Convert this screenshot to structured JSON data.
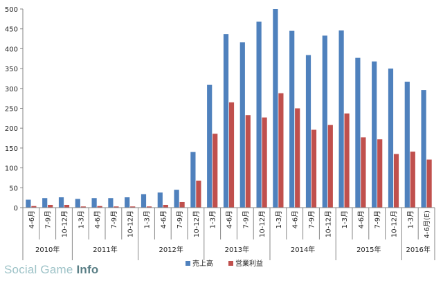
{
  "watermark": {
    "prefix": "Social Game ",
    "suffix": "Info"
  },
  "chart_data": {
    "type": "bar",
    "title": "",
    "xlabel": "",
    "ylabel": "",
    "ylim": [
      0,
      500
    ],
    "yticks": [
      0,
      50,
      100,
      150,
      200,
      250,
      300,
      350,
      400,
      450,
      500
    ],
    "grid": false,
    "legend_position": "bottom",
    "categories": [
      "4-6月",
      "7-9月",
      "10-12月",
      "1-3月",
      "4-6月",
      "7-9月",
      "10-12月",
      "1-3月",
      "4-6月",
      "7-9月",
      "10-12月",
      "1-3月",
      "4-6月",
      "7-9月",
      "10-12月",
      "1-3月",
      "4-6月",
      "7-9月",
      "10-12月",
      "1-3月",
      "4-6月",
      "7-9月",
      "10-12月",
      "1-3月",
      "4-6月(E)"
    ],
    "years": [
      {
        "label": "2010年",
        "count": 3
      },
      {
        "label": "2011年",
        "count": 4
      },
      {
        "label": "2012年",
        "count": 4
      },
      {
        "label": "2013年",
        "count": 4
      },
      {
        "label": "2014年",
        "count": 4
      },
      {
        "label": "2015年",
        "count": 4
      },
      {
        "label": "2016年",
        "count": 2
      }
    ],
    "series": [
      {
        "name": "売上高",
        "color": "#4f81bd",
        "values": [
          20,
          24,
          26,
          22,
          24,
          24,
          26,
          34,
          38,
          45,
          140,
          309,
          437,
          416,
          468,
          500,
          445,
          384,
          433,
          446,
          377,
          368,
          350,
          317,
          296
        ]
      },
      {
        "name": "営業利益",
        "color": "#c0504d",
        "values": [
          4,
          7,
          7,
          3,
          4,
          3,
          3,
          3,
          7,
          14,
          68,
          186,
          265,
          233,
          227,
          288,
          250,
          196,
          208,
          237,
          177,
          172,
          135,
          141,
          121
        ]
      }
    ]
  }
}
